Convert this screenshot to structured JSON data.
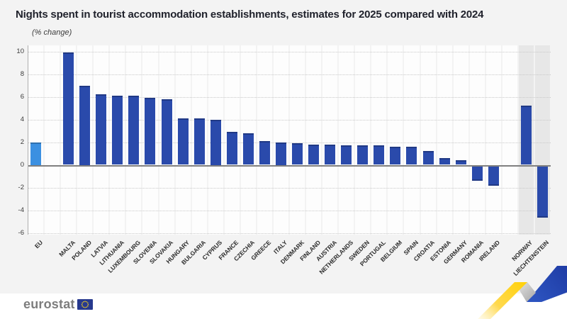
{
  "header": {
    "title": "Nights spent in tourist accommodation establishments, estimates for 2025 compared with 2024",
    "subtitle": "(% change)"
  },
  "chart_data": {
    "type": "bar",
    "title": "Nights spent in tourist accommodation establishments, estimates for 2025 compared with 2024",
    "subtitle": "(% change)",
    "ylabel": "% change",
    "ylim": [
      -6,
      10
    ],
    "ytick_step": 2,
    "y_ticks": [
      "10",
      "8",
      "6",
      "4",
      "2",
      "0",
      "-2",
      "-4",
      "-6"
    ],
    "grid": "horizontal dotted, solid zero line",
    "legend": "none",
    "categories": [
      "EU",
      "MALTA",
      "POLAND",
      "LATVIA",
      "LITHUANIA",
      "LUXEMBOURG",
      "SLOVENIA",
      "SLOVAKIA",
      "HUNGARY",
      "BULGARIA",
      "CYPRUS",
      "FRANCE",
      "CZECHIA",
      "GREECE",
      "ITALY",
      "DENMARK",
      "FINLAND",
      "AUSTRIA",
      "NETHERLANDS",
      "SWEDEN",
      "PORTUGAL",
      "BELGIUM",
      "SPAIN",
      "CROATIA",
      "ESTONIA",
      "GERMANY",
      "ROMANIA",
      "IRELAND",
      "NORWAY",
      "LIECHTENSTEIN"
    ],
    "values": [
      2.0,
      9.9,
      7.0,
      6.2,
      6.1,
      6.1,
      5.9,
      5.8,
      4.1,
      4.1,
      4.0,
      2.9,
      2.8,
      2.1,
      2.0,
      1.9,
      1.8,
      1.8,
      1.7,
      1.7,
      1.7,
      1.6,
      1.6,
      1.2,
      0.6,
      0.4,
      -1.3,
      -1.7,
      5.2,
      -4.5
    ],
    "colors": {
      "eu_bar": "#3B90E1",
      "country_bar": "#2A4AAB",
      "column_background": "#FDFDFD",
      "shaded_column_background": "#E7E7E7",
      "page_background": "#F3F3F3"
    },
    "layout_hints": {
      "spacer_after": [
        "EU",
        "IRELAND"
      ],
      "shaded_columns": [
        "NORWAY",
        "LIECHTENSTEIN"
      ],
      "x_labels_rotation_degrees": -45,
      "legend_position": "none"
    }
  },
  "footer": {
    "logo_text": "eurostat"
  }
}
